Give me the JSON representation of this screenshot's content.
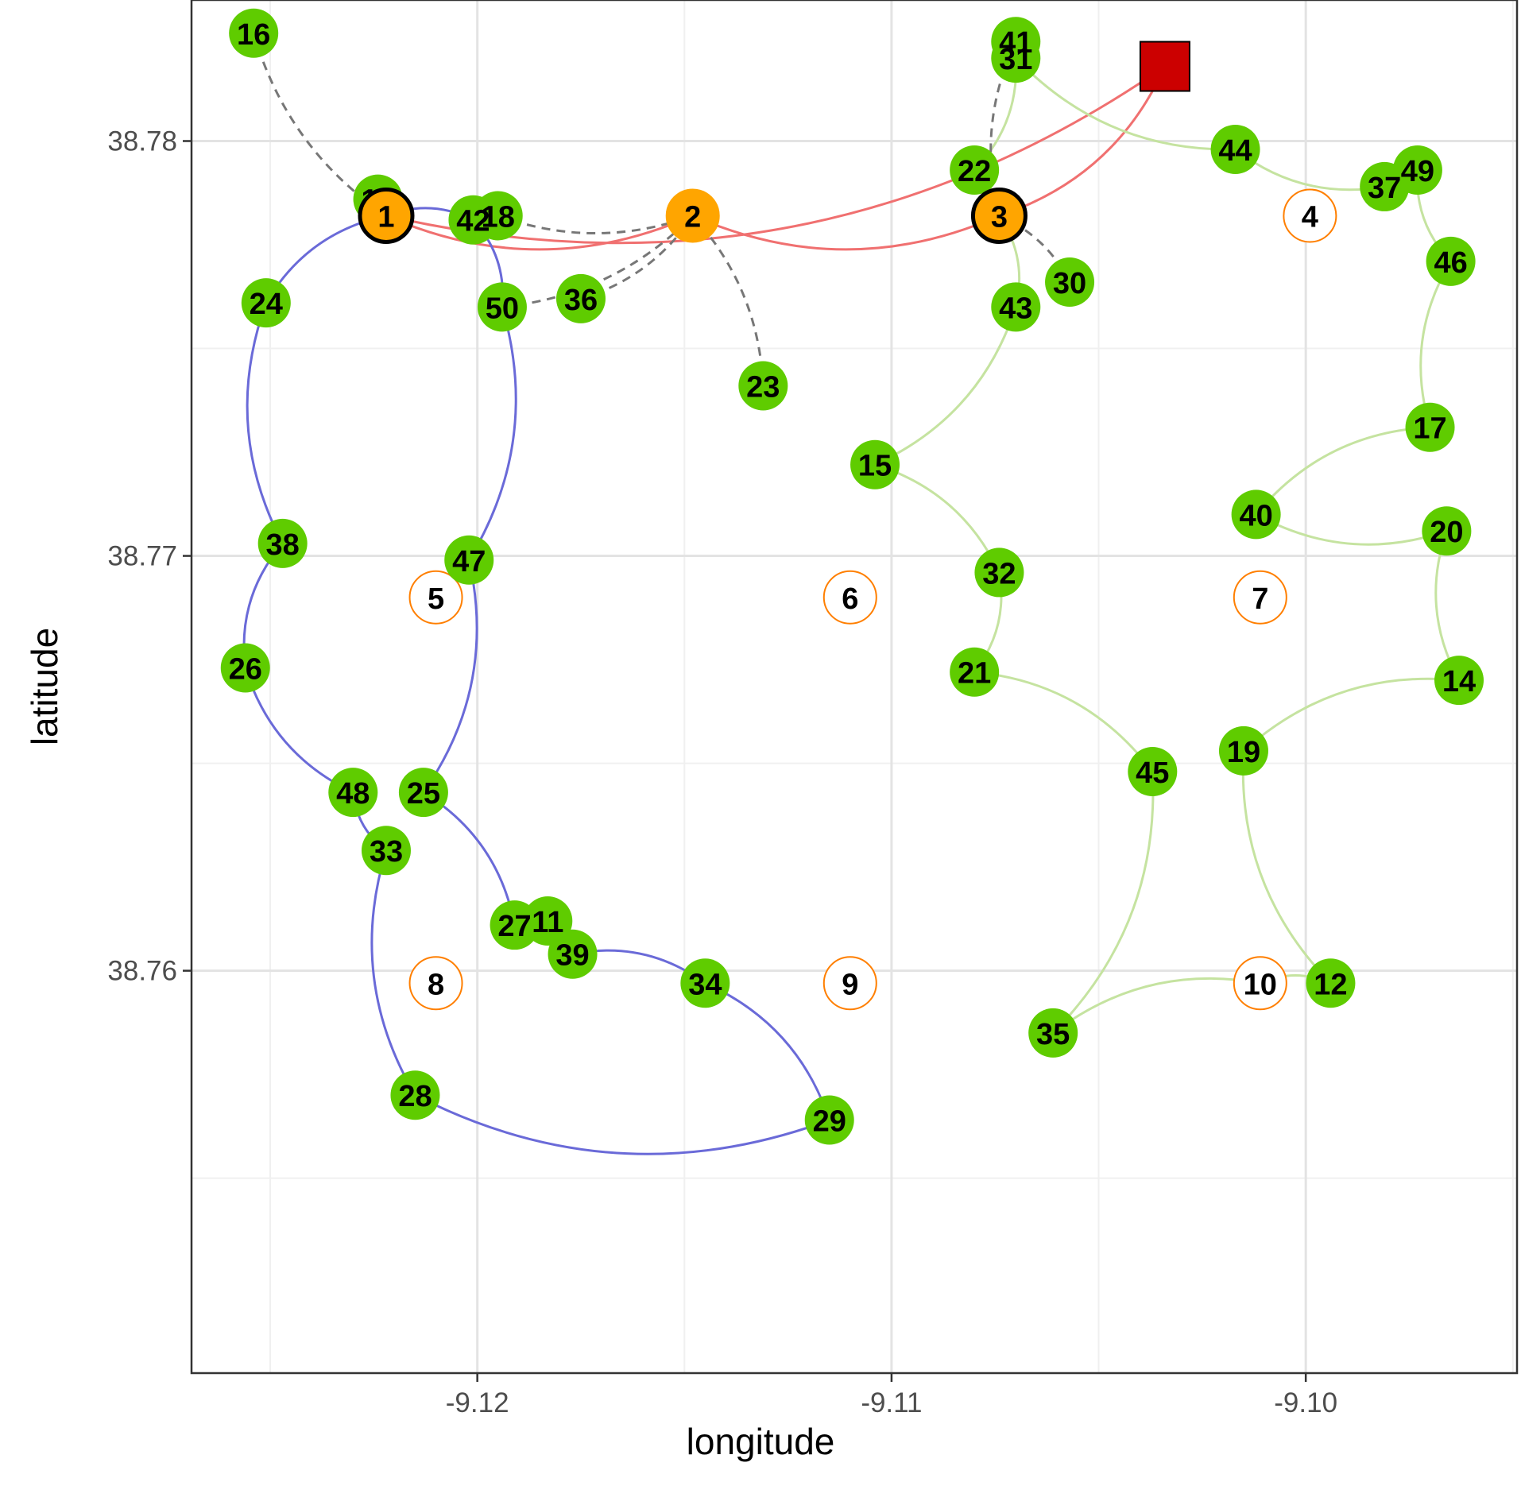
{
  "chart_data": {
    "type": "scatter",
    "xlabel": "longitude",
    "ylabel": "latitude",
    "xlim": [
      -9.1269,
      -9.0949
    ],
    "ylim": [
      38.7503,
      38.7834
    ],
    "x_ticks": [
      -9.12,
      -9.11,
      -9.1
    ],
    "x_tick_labels": [
      "-9.12",
      "-9.11",
      "-9.10"
    ],
    "y_ticks": [
      38.76,
      38.77,
      38.78
    ],
    "y_tick_labels": [
      "38.76",
      "38.77",
      "38.78"
    ],
    "grid": true,
    "colors": {
      "customer": "#5fcc00",
      "facility_open": "#ffa500",
      "facility_closed_border": "#ff7f00",
      "depot": "#cc0000",
      "route_red": "#f07070",
      "route_blue": "#6a6ad8",
      "route_green": "#c5e3a0",
      "assignment_dashed": "#777777"
    },
    "depot": {
      "x": -9.1034,
      "y": 38.7818
    },
    "facilities": [
      {
        "id": "1",
        "x": -9.1222,
        "y": 38.7782,
        "open": true
      },
      {
        "id": "2",
        "x": -9.1148,
        "y": 38.7782,
        "open": true
      },
      {
        "id": "3",
        "x": -9.1074,
        "y": 38.7782,
        "open": true
      },
      {
        "id": "4",
        "x": -9.0999,
        "y": 38.7782,
        "open": false
      },
      {
        "id": "5",
        "x": -9.121,
        "y": 38.769,
        "open": false
      },
      {
        "id": "6",
        "x": -9.111,
        "y": 38.769,
        "open": false
      },
      {
        "id": "7",
        "x": -9.1011,
        "y": 38.769,
        "open": false
      },
      {
        "id": "8",
        "x": -9.121,
        "y": 38.7597,
        "open": false
      },
      {
        "id": "9",
        "x": -9.111,
        "y": 38.7597,
        "open": false
      },
      {
        "id": "10",
        "x": -9.1011,
        "y": 38.7597,
        "open": false
      }
    ],
    "customers": [
      {
        "id": "11",
        "x": -9.1183,
        "y": 38.7612
      },
      {
        "id": "12",
        "x": -9.0994,
        "y": 38.7597
      },
      {
        "id": "13",
        "x": -9.1224,
        "y": 38.7786
      },
      {
        "id": "14",
        "x": -9.0963,
        "y": 38.767
      },
      {
        "id": "15",
        "x": -9.1104,
        "y": 38.7722
      },
      {
        "id": "16",
        "x": -9.1254,
        "y": 38.7826
      },
      {
        "id": "17",
        "x": -9.097,
        "y": 38.7731
      },
      {
        "id": "18",
        "x": -9.1195,
        "y": 38.7782
      },
      {
        "id": "19",
        "x": -9.1015,
        "y": 38.7653
      },
      {
        "id": "20",
        "x": -9.0966,
        "y": 38.7706
      },
      {
        "id": "21",
        "x": -9.108,
        "y": 38.7672
      },
      {
        "id": "22",
        "x": -9.108,
        "y": 38.7793
      },
      {
        "id": "23",
        "x": -9.1131,
        "y": 38.7741
      },
      {
        "id": "24",
        "x": -9.1251,
        "y": 38.7761
      },
      {
        "id": "25",
        "x": -9.1213,
        "y": 38.7643
      },
      {
        "id": "26",
        "x": -9.1256,
        "y": 38.7673
      },
      {
        "id": "27",
        "x": -9.1191,
        "y": 38.7611
      },
      {
        "id": "28",
        "x": -9.1215,
        "y": 38.757
      },
      {
        "id": "29",
        "x": -9.1115,
        "y": 38.7564
      },
      {
        "id": "30",
        "x": -9.1057,
        "y": 38.7766
      },
      {
        "id": "31",
        "x": -9.107,
        "y": 38.782
      },
      {
        "id": "32",
        "x": -9.1074,
        "y": 38.7696
      },
      {
        "id": "33",
        "x": -9.1222,
        "y": 38.7629
      },
      {
        "id": "34",
        "x": -9.1145,
        "y": 38.7597
      },
      {
        "id": "35",
        "x": -9.1061,
        "y": 38.7585
      },
      {
        "id": "36",
        "x": -9.1175,
        "y": 38.7762
      },
      {
        "id": "37",
        "x": -9.0981,
        "y": 38.7789
      },
      {
        "id": "38",
        "x": -9.1247,
        "y": 38.7703
      },
      {
        "id": "39",
        "x": -9.1177,
        "y": 38.7604
      },
      {
        "id": "40",
        "x": -9.1012,
        "y": 38.771
      },
      {
        "id": "41",
        "x": -9.107,
        "y": 38.7824
      },
      {
        "id": "42",
        "x": -9.1201,
        "y": 38.7781
      },
      {
        "id": "43",
        "x": -9.107,
        "y": 38.776
      },
      {
        "id": "44",
        "x": -9.1017,
        "y": 38.7798
      },
      {
        "id": "45",
        "x": -9.1037,
        "y": 38.7648
      },
      {
        "id": "46",
        "x": -9.0965,
        "y": 38.7771
      },
      {
        "id": "47",
        "x": -9.1202,
        "y": 38.7699
      },
      {
        "id": "48",
        "x": -9.123,
        "y": 38.7643
      },
      {
        "id": "49",
        "x": -9.0973,
        "y": 38.7793
      },
      {
        "id": "50",
        "x": -9.1194,
        "y": 38.776
      }
    ],
    "routes": [
      {
        "color": "route_red",
        "stops": [
          "1",
          "depot"
        ]
      },
      {
        "color": "route_red",
        "stops": [
          "1",
          "2",
          "3",
          "depot"
        ]
      },
      {
        "color": "route_blue",
        "stops": [
          "1",
          "24",
          "38",
          "26",
          "48",
          "33",
          "28",
          "29",
          "34",
          "39",
          "11",
          "27",
          "25",
          "47",
          "50",
          "42",
          "1"
        ]
      },
      {
        "color": "route_green",
        "stops": [
          "3",
          "22",
          "31",
          "44",
          "37",
          "49",
          "46",
          "17",
          "40",
          "20",
          "14",
          "19",
          "12",
          "10",
          "35",
          "45",
          "21",
          "32",
          "15",
          "43",
          "3"
        ]
      }
    ],
    "assignments": [
      {
        "from": "16",
        "to": "1"
      },
      {
        "from": "13",
        "to": "1"
      },
      {
        "from": "18",
        "to": "2"
      },
      {
        "from": "36",
        "to": "2"
      },
      {
        "from": "50",
        "to": "2"
      },
      {
        "from": "23",
        "to": "2"
      },
      {
        "from": "30",
        "to": "3"
      },
      {
        "from": "41",
        "to": "3"
      }
    ]
  }
}
